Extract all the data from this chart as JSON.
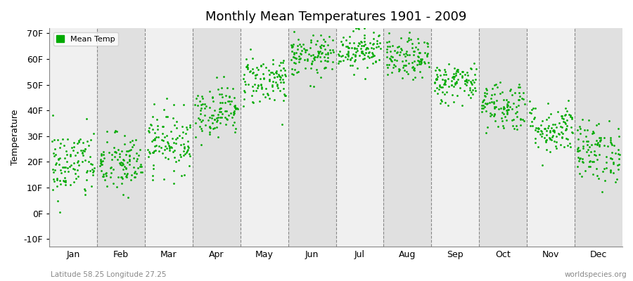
{
  "title": "Monthly Mean Temperatures 1901 - 2009",
  "ylabel": "Temperature",
  "xlabel_labels": [
    "Jan",
    "Feb",
    "Mar",
    "Apr",
    "May",
    "Jun",
    "Jul",
    "Aug",
    "Sep",
    "Oct",
    "Nov",
    "Dec"
  ],
  "ytick_labels": [
    "-10F",
    "0F",
    "10F",
    "20F",
    "30F",
    "40F",
    "50F",
    "60F",
    "70F"
  ],
  "ytick_values": [
    -10,
    0,
    10,
    20,
    30,
    40,
    50,
    60,
    70
  ],
  "ylim": [
    -13,
    72
  ],
  "legend_label": "Mean Temp",
  "dot_color": "#00AA00",
  "background_color": "#ffffff",
  "plot_bg_light": "#f0f0f0",
  "plot_bg_dark": "#e0e0e0",
  "subtitle_left": "Latitude 58.25 Longitude 27.25",
  "subtitle_right": "worldspecies.org",
  "monthly_means": [
    19,
    19,
    28,
    40,
    52,
    61,
    64,
    60,
    51,
    42,
    33,
    24
  ],
  "monthly_stds": [
    7,
    6,
    6,
    5,
    5,
    4,
    4,
    4,
    4,
    5,
    5,
    6
  ],
  "n_years": 109,
  "marker_size": 4
}
